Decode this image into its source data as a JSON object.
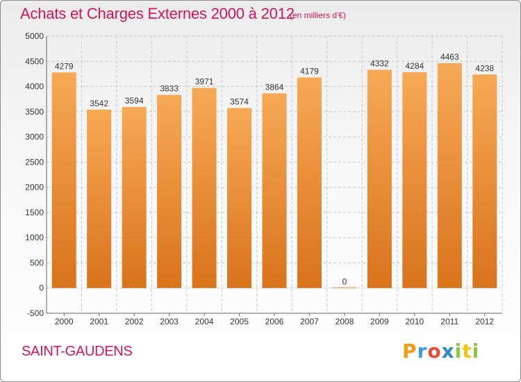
{
  "header": {
    "title": "Achats et Charges Externes 2000 à 2012",
    "subtitle": "(en milliers d'€)"
  },
  "footer": {
    "city": "SAINT-GAUDENS",
    "brand": "Proxiti"
  },
  "colors": {
    "title": "#d4145a",
    "bar_top": "#f7a956",
    "bar_bottom": "#d9731c",
    "grid": "#c8c8c8"
  },
  "chart_data": {
    "type": "bar",
    "title": "Achats et Charges Externes 2000 à 2012",
    "subtitle": "(en milliers d'€)",
    "categories": [
      "2000",
      "2001",
      "2002",
      "2003",
      "2004",
      "2005",
      "2006",
      "2007",
      "2008",
      "2009",
      "2010",
      "2011",
      "2012"
    ],
    "values": [
      4279,
      3542,
      3594,
      3833,
      3971,
      3574,
      3864,
      4179,
      0,
      4332,
      4284,
      4463,
      4238
    ],
    "ylim": [
      -500,
      5000
    ],
    "yticks": [
      -500,
      0,
      500,
      1000,
      1500,
      2000,
      2500,
      3000,
      3500,
      4000,
      4500,
      5000
    ],
    "grid": true,
    "legend": "none"
  }
}
